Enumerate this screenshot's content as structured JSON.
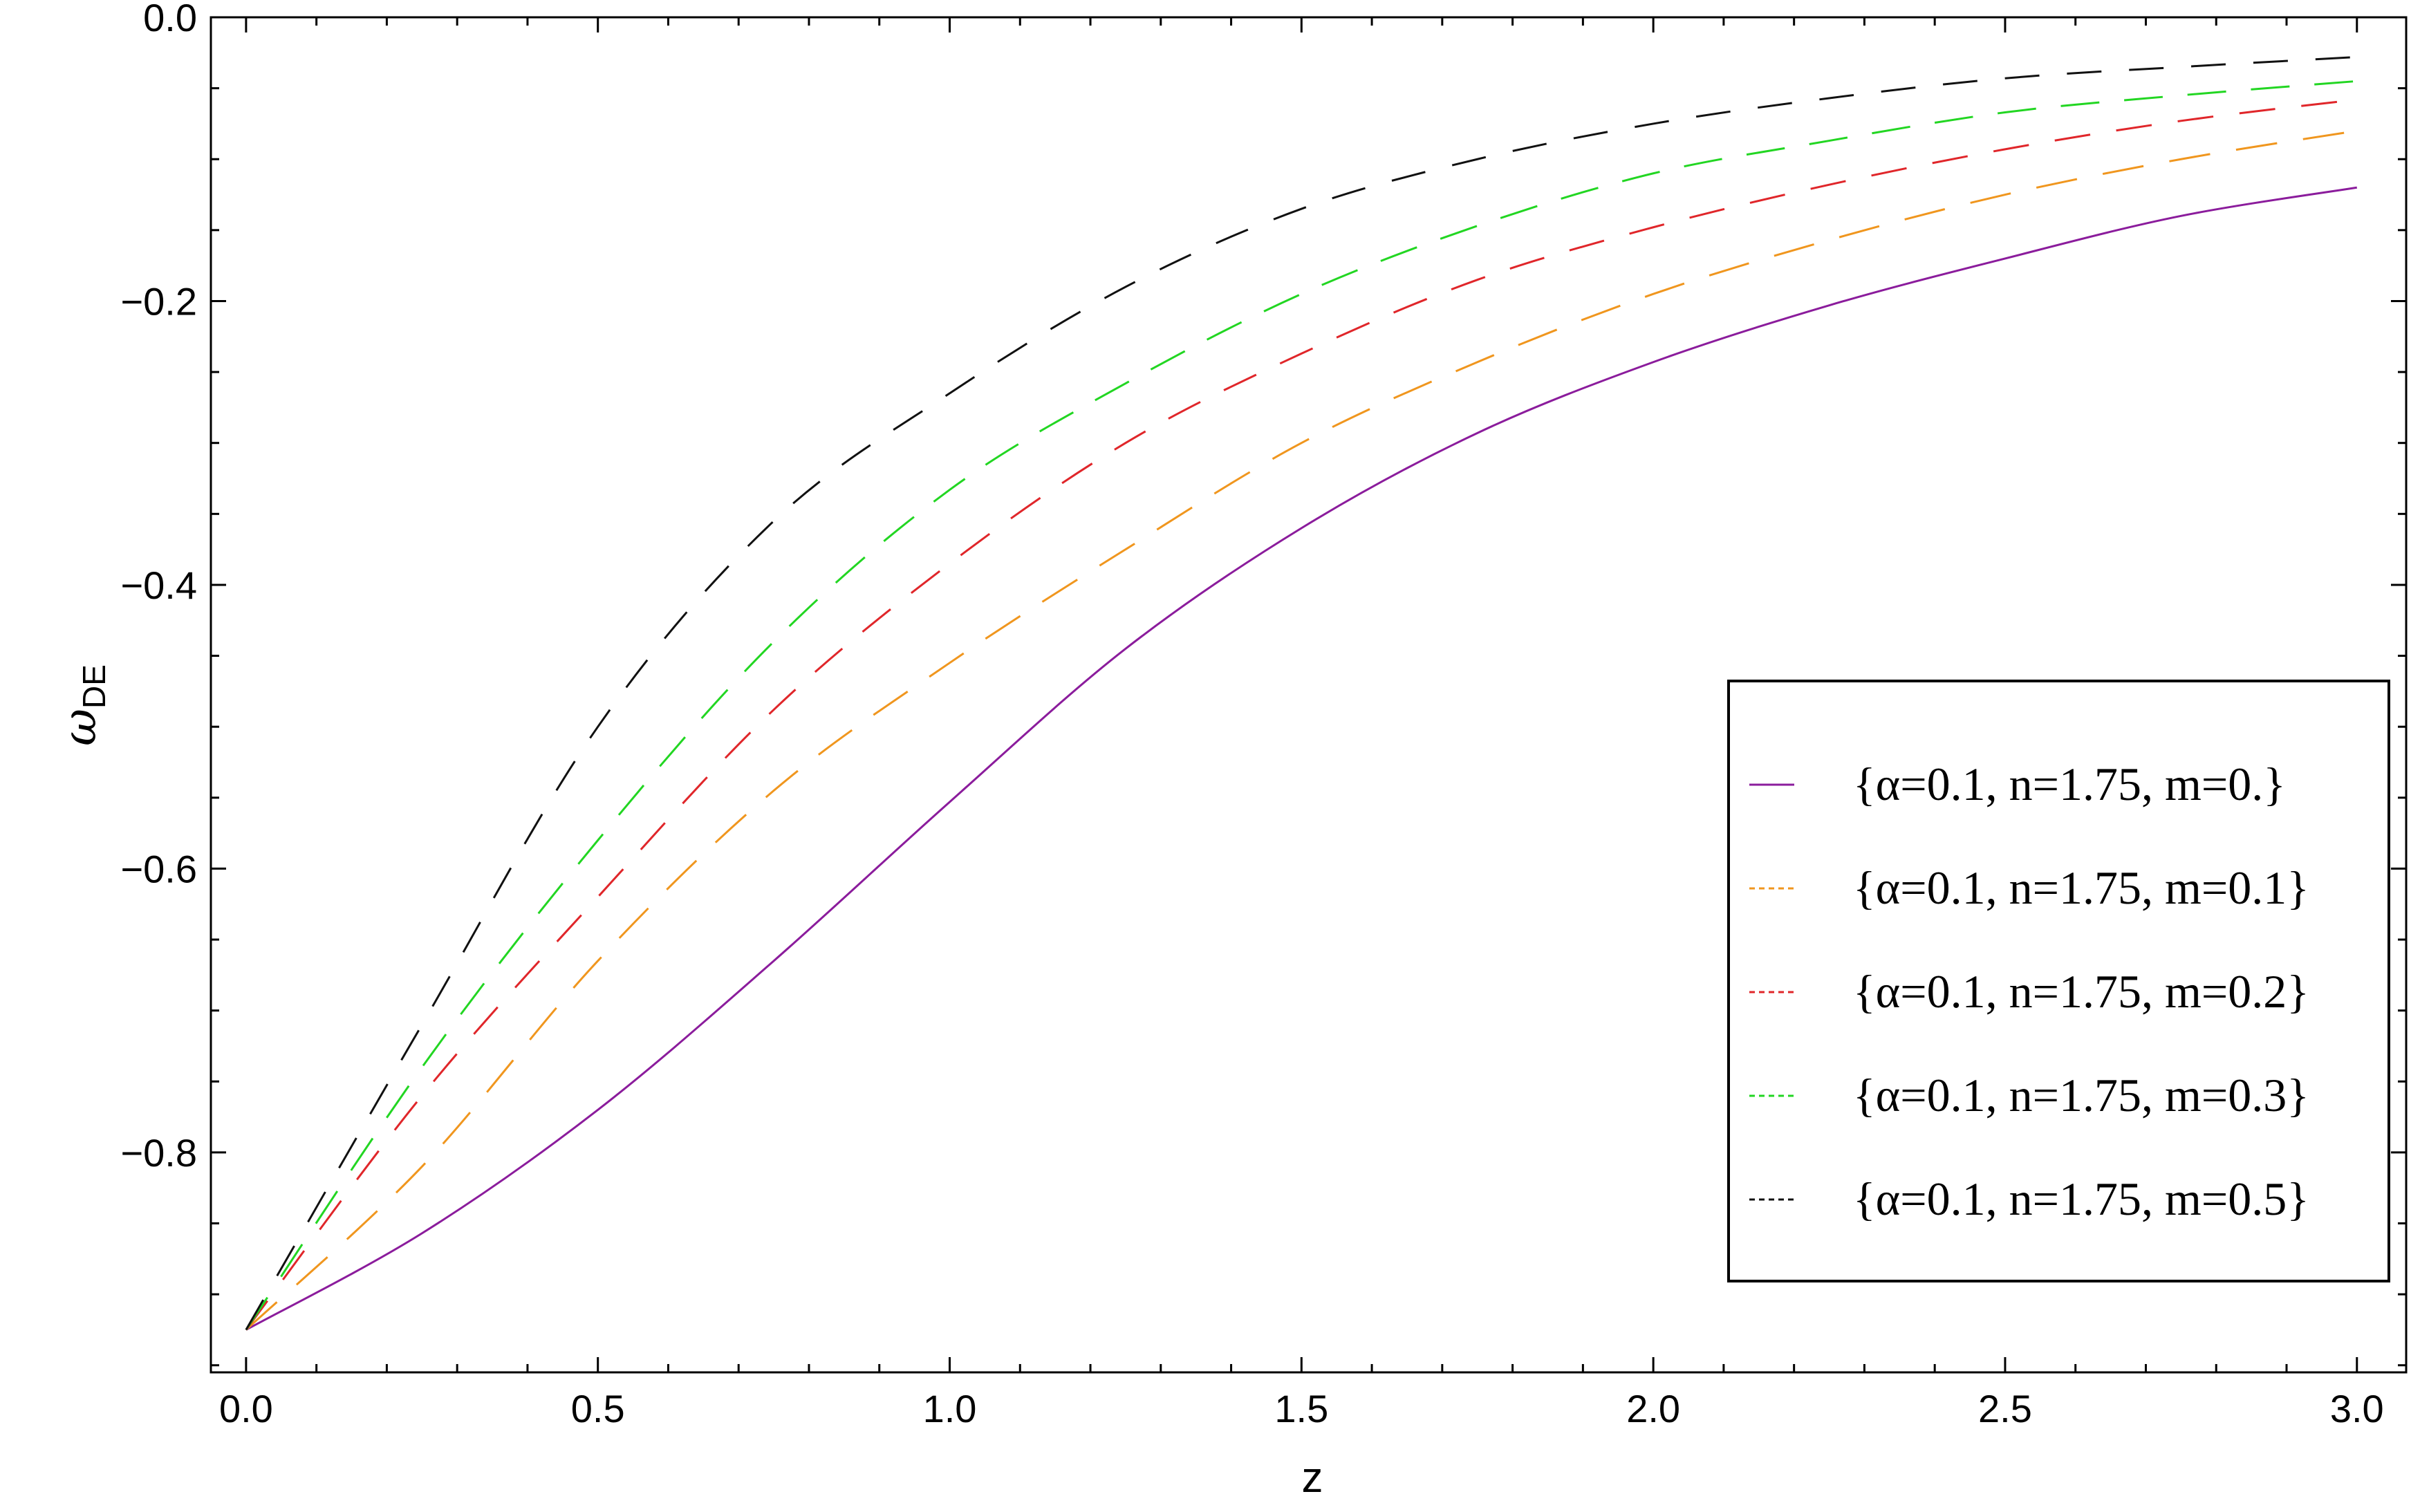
{
  "chart_data": {
    "type": "line",
    "xlabel": "z",
    "ylabel": {
      "symbol": "ω",
      "subscript": "DE"
    },
    "xlim": [
      -0.05,
      3.07
    ],
    "ylim": [
      -0.955,
      0.0
    ],
    "x_ticks": [
      {
        "value": 0.0,
        "label": "0.0"
      },
      {
        "value": 0.5,
        "label": "0.5"
      },
      {
        "value": 1.0,
        "label": "1.0"
      },
      {
        "value": 1.5,
        "label": "1.5"
      },
      {
        "value": 2.0,
        "label": "2.0"
      },
      {
        "value": 2.5,
        "label": "2.5"
      },
      {
        "value": 3.0,
        "label": "3.0"
      }
    ],
    "y_ticks": [
      {
        "value": 0.0,
        "label": "0.0"
      },
      {
        "value": -0.2,
        "label": "−0.2"
      },
      {
        "value": -0.4,
        "label": "−0.4"
      },
      {
        "value": -0.6,
        "label": "−0.6"
      },
      {
        "value": -0.8,
        "label": "−0.8"
      }
    ],
    "grid": false,
    "legend_position": "right",
    "series": [
      {
        "name": "{α=0.1, n=1.75, m=0.}",
        "color": "#8b1c9c",
        "style": "solid",
        "x": [
          0.0,
          0.25,
          0.5,
          0.75,
          1.0,
          1.25,
          1.5,
          1.75,
          2.0,
          2.25,
          2.5,
          2.75,
          3.0
        ],
        "y": [
          -0.925,
          -0.857,
          -0.77,
          -0.665,
          -0.553,
          -0.445,
          -0.36,
          -0.293,
          -0.243,
          -0.203,
          -0.17,
          -0.14,
          -0.12
        ]
      },
      {
        "name": "{α=0.1, n=1.75, m=0.1}",
        "color": "#f0961e",
        "style": "dashed",
        "x": [
          0.0,
          0.25,
          0.5,
          0.75,
          1.0,
          1.25,
          1.5,
          1.75,
          2.0,
          2.25,
          2.5,
          2.75,
          3.0
        ],
        "y": [
          -0.925,
          -0.81,
          -0.665,
          -0.545,
          -0.455,
          -0.375,
          -0.3,
          -0.243,
          -0.195,
          -0.157,
          -0.125,
          -0.1,
          -0.08
        ]
      },
      {
        "name": "{α=0.1, n=1.75, m=0.2}",
        "color": "#e0262a",
        "style": "dashed",
        "x": [
          0.0,
          0.25,
          0.5,
          0.75,
          1.0,
          1.25,
          1.5,
          1.75,
          2.0,
          2.25,
          2.5,
          2.75,
          3.0
        ],
        "y": [
          -0.925,
          -0.76,
          -0.62,
          -0.488,
          -0.385,
          -0.3,
          -0.237,
          -0.185,
          -0.148,
          -0.118,
          -0.093,
          -0.073,
          -0.058
        ]
      },
      {
        "name": "{α=0.1, n=1.75, m=0.3}",
        "color": "#22d622",
        "style": "dashed",
        "x": [
          0.0,
          0.25,
          0.5,
          0.75,
          1.0,
          1.25,
          1.5,
          1.75,
          2.0,
          2.25,
          2.5,
          2.75,
          3.0
        ],
        "y": [
          -0.925,
          -0.74,
          -0.58,
          -0.44,
          -0.333,
          -0.258,
          -0.195,
          -0.147,
          -0.11,
          -0.087,
          -0.067,
          -0.055,
          -0.045
        ]
      },
      {
        "name": "{α=0.1, n=1.75, m=0.5}",
        "color": "#111111",
        "style": "dashed",
        "x": [
          0.0,
          0.25,
          0.5,
          0.75,
          1.0,
          1.25,
          1.5,
          1.75,
          2.0,
          2.25,
          2.5,
          2.75,
          3.0
        ],
        "y": [
          -0.925,
          -0.71,
          -0.5,
          -0.355,
          -0.265,
          -0.19,
          -0.135,
          -0.1,
          -0.075,
          -0.057,
          -0.043,
          -0.035,
          -0.028
        ]
      }
    ]
  }
}
